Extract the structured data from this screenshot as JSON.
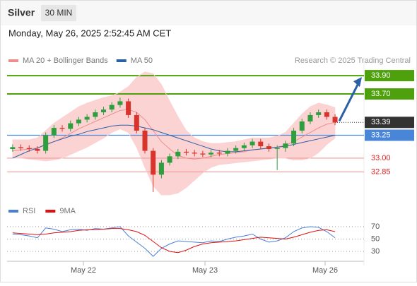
{
  "chart_data": [
    {
      "type": "candlestick",
      "title": "Silver",
      "timeframe": "30 MIN",
      "subtitle": "Monday, May 26, 2025 2:52:45 AM CET",
      "source": "Research © 2025 Trading Central",
      "x": [
        0,
        1,
        2,
        3,
        4,
        5,
        6,
        7,
        8,
        9,
        10,
        11,
        12,
        13,
        14,
        15,
        16,
        17,
        18,
        19,
        20,
        21,
        22,
        23,
        24,
        25,
        26,
        27,
        28,
        29,
        30,
        31,
        32,
        33,
        34,
        35,
        36,
        37,
        38,
        39
      ],
      "xlim": [
        -0.5,
        42.5
      ],
      "xticks": [
        {
          "value": 8.56,
          "label": "May 22"
        },
        {
          "value": 23.27,
          "label": "May 23"
        },
        {
          "value": 37.8,
          "label": "May 26"
        }
      ],
      "ylim": [
        32.53,
        34.07
      ],
      "up_color": "#2e9e3e",
      "down_color": "#d9342b",
      "open": [
        33.1,
        33.12,
        33.11,
        33.1,
        33.08,
        33.25,
        33.33,
        33.32,
        33.38,
        33.42,
        33.45,
        33.5,
        33.53,
        33.58,
        33.62,
        33.47,
        33.3,
        33.08,
        32.82,
        32.95,
        33.02,
        33.07,
        33.06,
        33.05,
        33.04,
        33.06,
        33.05,
        33.08,
        33.11,
        33.14,
        33.18,
        33.13,
        33.1,
        33.11,
        33.16,
        33.3,
        33.4,
        33.47,
        33.5,
        33.45
      ],
      "high": [
        33.15,
        33.15,
        33.14,
        33.13,
        33.28,
        33.36,
        33.36,
        33.41,
        33.45,
        33.48,
        33.53,
        33.56,
        33.61,
        33.66,
        33.65,
        33.5,
        33.33,
        33.11,
        32.98,
        33.05,
        33.1,
        33.1,
        33.09,
        33.08,
        33.09,
        33.09,
        33.11,
        33.14,
        33.17,
        33.21,
        33.21,
        33.16,
        33.14,
        33.19,
        33.33,
        33.43,
        33.5,
        33.53,
        33.53,
        33.48
      ],
      "low": [
        33.07,
        33.08,
        33.07,
        33.05,
        33.05,
        33.22,
        33.29,
        33.29,
        33.35,
        33.39,
        33.42,
        33.47,
        33.5,
        33.55,
        33.44,
        33.27,
        33.05,
        32.63,
        32.78,
        32.92,
        32.99,
        33.03,
        33.02,
        33.01,
        33.01,
        33.02,
        33.02,
        33.05,
        33.08,
        33.11,
        33.1,
        33.07,
        32.87,
        33.07,
        33.13,
        33.27,
        33.37,
        33.44,
        33.42,
        33.36
      ],
      "close": [
        33.12,
        33.11,
        33.1,
        33.08,
        33.25,
        33.33,
        33.32,
        33.38,
        33.42,
        33.45,
        33.5,
        33.53,
        33.58,
        33.62,
        33.47,
        33.3,
        33.08,
        32.82,
        32.95,
        33.02,
        33.07,
        33.06,
        33.05,
        33.04,
        33.06,
        33.05,
        33.08,
        33.11,
        33.14,
        33.18,
        33.13,
        33.1,
        33.11,
        33.16,
        33.3,
        33.4,
        33.47,
        33.5,
        33.45,
        33.39
      ],
      "series": [
        {
          "name": "MA 20 + Bollinger Bands",
          "color": "#f08c8c",
          "band_color": "#fcd3d3",
          "values": [
            33.08,
            33.09,
            33.1,
            33.11,
            33.14,
            33.18,
            33.22,
            33.27,
            33.32,
            33.36,
            33.4,
            33.44,
            33.48,
            33.52,
            33.53,
            33.5,
            33.42,
            33.3,
            33.18,
            33.1,
            33.03,
            33.0,
            32.99,
            33.0,
            33.02,
            33.04,
            33.05,
            33.06,
            33.07,
            33.09,
            33.1,
            33.11,
            33.12,
            33.14,
            33.18,
            33.23,
            33.28,
            33.33,
            33.37,
            33.39
          ],
          "upper": [
            33.2,
            33.2,
            33.2,
            33.22,
            33.3,
            33.38,
            33.44,
            33.5,
            33.56,
            33.6,
            33.63,
            33.66,
            33.68,
            33.72,
            33.78,
            33.88,
            33.94,
            33.92,
            33.8,
            33.62,
            33.45,
            33.3,
            33.22,
            33.18,
            33.16,
            33.16,
            33.17,
            33.18,
            33.2,
            33.22,
            33.22,
            33.22,
            33.24,
            33.28,
            33.38,
            33.48,
            33.56,
            33.6,
            33.58,
            33.55
          ],
          "lower": [
            33.0,
            33.0,
            32.99,
            32.98,
            32.97,
            32.98,
            33.0,
            33.04,
            33.08,
            33.12,
            33.17,
            33.22,
            33.28,
            33.32,
            33.28,
            33.12,
            32.9,
            32.7,
            32.6,
            32.6,
            32.62,
            32.68,
            32.76,
            32.84,
            32.9,
            32.93,
            32.94,
            32.95,
            32.96,
            32.97,
            32.98,
            32.99,
            33.0,
            33.0,
            32.98,
            32.98,
            33.0,
            33.06,
            33.15,
            33.22
          ]
        },
        {
          "name": "MA 50",
          "color": "#2b5fa6",
          "values": [
            33.0,
            33.04,
            33.08,
            33.11,
            33.15,
            33.18,
            33.21,
            33.24,
            33.26,
            33.29,
            33.31,
            33.33,
            33.35,
            33.36,
            33.36,
            33.35,
            33.33,
            33.31,
            33.28,
            33.25,
            33.22,
            33.19,
            33.16,
            33.13,
            33.1,
            33.08,
            33.07,
            33.07,
            33.08,
            33.09,
            33.1,
            33.11,
            33.12,
            33.13,
            33.15,
            33.17,
            33.19,
            33.21,
            33.23,
            33.25
          ]
        }
      ],
      "levels": [
        {
          "value": 33.9,
          "label": "33.90",
          "color": "#4ea10c",
          "line": "solid",
          "style": "box"
        },
        {
          "value": 33.7,
          "label": "33.70",
          "color": "#4ea10c",
          "line": "solid",
          "style": "box"
        },
        {
          "value": 33.39,
          "label": "33.39",
          "color": "#333333",
          "line": "dotted",
          "style": "box"
        },
        {
          "value": 33.25,
          "label": "33.25",
          "color": "#4a86d8",
          "line": "solid",
          "style": "box"
        },
        {
          "value": 33,
          "label": "33.00",
          "color": "#f29a9a",
          "text_color": "#e02020",
          "line": "solid",
          "style": "text"
        },
        {
          "value": 32.85,
          "label": "32.85",
          "color": "#f29a9a",
          "text_color": "#e02020",
          "line": "solid",
          "style": "text"
        }
      ]
    },
    {
      "type": "line",
      "ylim": [
        14,
        94
      ],
      "yticks": [
        30,
        50,
        70
      ],
      "grid": true,
      "series": [
        {
          "name": "RSI",
          "color": "#4a7fd6",
          "values": [
            58,
            57,
            55,
            52,
            68,
            66,
            62,
            65,
            66,
            64,
            67,
            66,
            68,
            70,
            55,
            45,
            35,
            22,
            35,
            42,
            47,
            46,
            45,
            44,
            47,
            46,
            50,
            53,
            55,
            58,
            50,
            45,
            47,
            52,
            62,
            68,
            70,
            69,
            62,
            52
          ]
        },
        {
          "name": "9MA",
          "color": "#e01010",
          "values": [
            60,
            59,
            58,
            57,
            58,
            60,
            61,
            62,
            64,
            65,
            65,
            66,
            67,
            67,
            65,
            62,
            56,
            46,
            36,
            30,
            28,
            32,
            38,
            42,
            44,
            45,
            46,
            47,
            49,
            51,
            53,
            52,
            51,
            50,
            53,
            57,
            61,
            64,
            65,
            62
          ]
        }
      ]
    }
  ]
}
